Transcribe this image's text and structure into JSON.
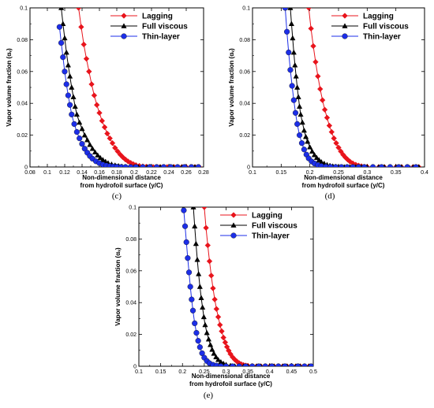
{
  "chart_data": [
    {
      "type": "line",
      "panel_label": "(c)",
      "xlabel": [
        "Non-dimensional distance",
        "from hydrofoil surface (y/C)"
      ],
      "ylabel": "Vapor volume fraction (αᵥ)",
      "xlim": [
        0.08,
        0.28
      ],
      "ylim": [
        0,
        0.1
      ],
      "xticks": [
        "0.08",
        "0.1",
        "0.12",
        "0.14",
        "0.16",
        "0.18",
        "0.2",
        "0.22",
        "0.24",
        "0.26",
        "0.28"
      ],
      "xtick_values": [
        0.08,
        0.1,
        0.12,
        0.14,
        0.16,
        0.18,
        0.2,
        0.22,
        0.24,
        0.26,
        0.28
      ],
      "yticks": [
        "0",
        "0.02",
        "0.04",
        "0.06",
        "0.08",
        "0.1"
      ],
      "ytick_values": [
        0,
        0.02,
        0.04,
        0.06,
        0.08,
        0.1
      ],
      "legend_position": "top-right",
      "series": [
        {
          "name": "Lagging",
          "color": "#e8141c",
          "marker": "diamond",
          "x": [
            0.136,
            0.139,
            0.142,
            0.145,
            0.148,
            0.151,
            0.154,
            0.157,
            0.16,
            0.163,
            0.166,
            0.169,
            0.172,
            0.175,
            0.178,
            0.181,
            0.184,
            0.187,
            0.19,
            0.193,
            0.196,
            0.199,
            0.202,
            0.206,
            0.21,
            0.214,
            0.218,
            0.222,
            0.226,
            0.23,
            0.234,
            0.238,
            0.242,
            0.246,
            0.25,
            0.255,
            0.26,
            0.265,
            0.27,
            0.275
          ],
          "y": [
            0.1,
            0.088,
            0.077,
            0.068,
            0.06,
            0.052,
            0.045,
            0.039,
            0.034,
            0.029,
            0.025,
            0.021,
            0.018,
            0.015,
            0.012,
            0.0098,
            0.0078,
            0.0061,
            0.0047,
            0.0035,
            0.0026,
            0.0018,
            0.0012,
            0.0007,
            0.0004,
            0.0002,
            0.0001,
            0,
            0,
            0,
            0,
            0,
            0,
            0,
            0,
            0,
            0,
            0,
            0,
            0
          ]
        },
        {
          "name": "Full viscous",
          "color": "#000000",
          "marker": "triangle",
          "x": [
            0.116,
            0.118,
            0.12,
            0.122,
            0.124,
            0.126,
            0.128,
            0.13,
            0.132,
            0.134,
            0.137,
            0.14,
            0.143,
            0.146,
            0.149,
            0.152,
            0.155,
            0.158,
            0.161,
            0.164,
            0.167,
            0.17,
            0.174,
            0.178,
            0.182,
            0.186,
            0.19,
            0.195,
            0.2,
            0.205,
            0.21,
            0.215,
            0.22,
            0.225,
            0.23,
            0.235,
            0.24,
            0.245,
            0.25,
            0.255,
            0.26,
            0.265,
            0.27,
            0.275
          ],
          "y": [
            0.1,
            0.09,
            0.081,
            0.072,
            0.064,
            0.057,
            0.05,
            0.044,
            0.038,
            0.033,
            0.028,
            0.024,
            0.02,
            0.017,
            0.014,
            0.0115,
            0.0093,
            0.0074,
            0.0058,
            0.0045,
            0.0034,
            0.0025,
            0.0017,
            0.0011,
            0.0007,
            0.0004,
            0.0002,
            0.0001,
            0,
            0,
            0,
            0,
            0,
            0,
            0,
            0,
            0,
            0,
            0,
            0,
            0,
            0,
            0,
            0
          ]
        },
        {
          "name": "Thin-layer",
          "color": "#1c2ee8",
          "marker": "circle",
          "x": [
            0.114,
            0.116,
            0.118,
            0.12,
            0.122,
            0.124,
            0.126,
            0.128,
            0.131,
            0.134,
            0.137,
            0.14,
            0.143,
            0.146,
            0.149,
            0.152,
            0.156,
            0.16,
            0.164,
            0.168,
            0.172,
            0.176,
            0.18,
            0.185,
            0.19,
            0.196,
            0.202,
            0.21,
            0.218,
            0.226,
            0.234,
            0.242,
            0.25,
            0.258,
            0.266,
            0.274
          ],
          "y": [
            0.088,
            0.078,
            0.069,
            0.06,
            0.052,
            0.045,
            0.039,
            0.033,
            0.027,
            0.022,
            0.018,
            0.0145,
            0.0115,
            0.009,
            0.0069,
            0.0052,
            0.0036,
            0.0024,
            0.0015,
            0.0009,
            0.0005,
            0.0003,
            0.0001,
            0,
            0,
            0,
            0,
            0,
            0,
            0,
            0,
            0,
            0,
            0,
            0,
            0
          ]
        }
      ]
    },
    {
      "type": "line",
      "panel_label": "(d)",
      "xlabel": [
        "Non-dimensional distance",
        "from hydrofoil surface (y/C)"
      ],
      "ylabel": "Vapor volume fraction (αᵥ)",
      "xlim": [
        0.1,
        0.4
      ],
      "ylim": [
        0,
        0.1
      ],
      "xticks": [
        "0.1",
        "0.15",
        "0.2",
        "0.25",
        "0.3",
        "0.35",
        "0.4"
      ],
      "xtick_values": [
        0.1,
        0.15,
        0.2,
        0.25,
        0.3,
        0.35,
        0.4
      ],
      "yticks": [
        "0",
        "0.02",
        "0.04",
        "0.06",
        "0.08",
        "0.1"
      ],
      "ytick_values": [
        0,
        0.02,
        0.04,
        0.06,
        0.08,
        0.1
      ],
      "legend_position": "top-right",
      "series": [
        {
          "name": "Lagging",
          "color": "#e8141c",
          "marker": "diamond",
          "x": [
            0.198,
            0.202,
            0.206,
            0.21,
            0.214,
            0.218,
            0.222,
            0.226,
            0.23,
            0.234,
            0.238,
            0.242,
            0.246,
            0.25,
            0.254,
            0.258,
            0.262,
            0.266,
            0.27,
            0.275,
            0.28,
            0.285,
            0.29,
            0.295,
            0.3,
            0.31,
            0.32,
            0.33,
            0.34,
            0.35,
            0.36,
            0.37,
            0.38,
            0.39
          ],
          "y": [
            0.1,
            0.087,
            0.076,
            0.066,
            0.057,
            0.049,
            0.042,
            0.036,
            0.031,
            0.026,
            0.022,
            0.018,
            0.015,
            0.0122,
            0.0098,
            0.0077,
            0.006,
            0.0046,
            0.0034,
            0.0023,
            0.0015,
            0.0009,
            0.0005,
            0.0002,
            0.0001,
            0,
            0,
            0,
            0,
            0,
            0,
            0,
            0,
            0
          ]
        },
        {
          "name": "Full viscous",
          "color": "#000000",
          "marker": "triangle",
          "x": [
            0.166,
            0.168,
            0.17,
            0.172,
            0.174,
            0.176,
            0.178,
            0.18,
            0.182,
            0.184,
            0.187,
            0.19,
            0.193,
            0.196,
            0.2,
            0.204,
            0.208,
            0.212,
            0.216,
            0.22,
            0.225,
            0.23,
            0.235,
            0.24,
            0.245,
            0.25,
            0.26,
            0.27,
            0.28,
            0.29,
            0.3,
            0.31,
            0.32,
            0.33,
            0.34,
            0.35,
            0.36,
            0.37,
            0.38,
            0.39
          ],
          "y": [
            0.1,
            0.09,
            0.081,
            0.072,
            0.064,
            0.057,
            0.05,
            0.044,
            0.038,
            0.033,
            0.028,
            0.023,
            0.019,
            0.016,
            0.0125,
            0.0098,
            0.0076,
            0.0058,
            0.0044,
            0.0032,
            0.0022,
            0.0014,
            0.0009,
            0.0005,
            0.0003,
            0.0001,
            0,
            0,
            0,
            0,
            0,
            0,
            0,
            0,
            0,
            0,
            0,
            0,
            0,
            0
          ]
        },
        {
          "name": "Thin-layer",
          "color": "#1c2ee8",
          "marker": "circle",
          "x": [
            0.157,
            0.16,
            0.163,
            0.166,
            0.169,
            0.172,
            0.175,
            0.178,
            0.182,
            0.186,
            0.19,
            0.194,
            0.198,
            0.203,
            0.208,
            0.214,
            0.22,
            0.228,
            0.236,
            0.245,
            0.255,
            0.265,
            0.275,
            0.285,
            0.295,
            0.31,
            0.325,
            0.34,
            0.355,
            0.37,
            0.385
          ],
          "y": [
            0.1,
            0.085,
            0.072,
            0.061,
            0.051,
            0.042,
            0.034,
            0.027,
            0.02,
            0.015,
            0.011,
            0.0078,
            0.0054,
            0.0035,
            0.0022,
            0.0012,
            0.0006,
            0.0002,
            0.0001,
            0,
            0,
            0,
            0,
            0,
            0,
            0,
            0,
            0,
            0,
            0,
            0
          ]
        }
      ]
    },
    {
      "type": "line",
      "panel_label": "(e)",
      "xlabel": [
        "Non-dimensional distance",
        "from hydrofoil surface (y/C)"
      ],
      "ylabel": "Vapor volume fraction (αᵥ)",
      "xlim": [
        0.1,
        0.5
      ],
      "ylim": [
        0,
        0.1
      ],
      "xticks": [
        "0.1",
        "0.15",
        "0.2",
        "0.25",
        "0.3",
        "0.35",
        "0.4",
        "0.45",
        "0.5"
      ],
      "xtick_values": [
        0.1,
        0.15,
        0.2,
        0.25,
        0.3,
        0.35,
        0.4,
        0.45,
        0.5
      ],
      "yticks": [
        "0",
        "0.02",
        "0.04",
        "0.06",
        "0.08",
        "0.1"
      ],
      "ytick_values": [
        0,
        0.02,
        0.04,
        0.06,
        0.08,
        0.1
      ],
      "legend_position": "top-right",
      "series": [
        {
          "name": "Lagging",
          "color": "#e8141c",
          "marker": "diamond",
          "x": [
            0.25,
            0.254,
            0.258,
            0.262,
            0.266,
            0.27,
            0.274,
            0.278,
            0.282,
            0.286,
            0.29,
            0.294,
            0.298,
            0.302,
            0.306,
            0.31,
            0.315,
            0.32,
            0.325,
            0.33,
            0.335,
            0.34,
            0.345,
            0.35,
            0.36,
            0.37,
            0.38,
            0.39,
            0.4,
            0.41,
            0.42,
            0.43,
            0.44,
            0.45,
            0.46,
            0.47,
            0.48,
            0.49
          ],
          "y": [
            0.1,
            0.087,
            0.076,
            0.066,
            0.057,
            0.049,
            0.042,
            0.036,
            0.031,
            0.026,
            0.022,
            0.018,
            0.015,
            0.0122,
            0.0098,
            0.0077,
            0.0057,
            0.0042,
            0.003,
            0.002,
            0.0013,
            0.0008,
            0.0005,
            0.0003,
            0.0001,
            0,
            0,
            0,
            0,
            0,
            0,
            0,
            0,
            0,
            0,
            0,
            0,
            0
          ]
        },
        {
          "name": "Full viscous",
          "color": "#000000",
          "marker": "triangle",
          "x": [
            0.225,
            0.228,
            0.231,
            0.234,
            0.237,
            0.24,
            0.243,
            0.246,
            0.249,
            0.252,
            0.256,
            0.26,
            0.264,
            0.268,
            0.272,
            0.277,
            0.282,
            0.288,
            0.294,
            0.3,
            0.31,
            0.32,
            0.33,
            0.34,
            0.35,
            0.36,
            0.37,
            0.38,
            0.39,
            0.4,
            0.41,
            0.42,
            0.43,
            0.44,
            0.45,
            0.46,
            0.47,
            0.48,
            0.49
          ],
          "y": [
            0.1,
            0.088,
            0.077,
            0.067,
            0.058,
            0.05,
            0.043,
            0.037,
            0.031,
            0.026,
            0.021,
            0.017,
            0.0135,
            0.0105,
            0.008,
            0.0058,
            0.0041,
            0.0027,
            0.0017,
            0.001,
            0.0004,
            0.0001,
            0,
            0,
            0,
            0,
            0,
            0,
            0,
            0,
            0,
            0,
            0,
            0,
            0,
            0,
            0,
            0,
            0
          ]
        },
        {
          "name": "Thin-layer",
          "color": "#1c2ee8",
          "marker": "circle",
          "x": [
            0.203,
            0.206,
            0.209,
            0.212,
            0.215,
            0.218,
            0.221,
            0.224,
            0.228,
            0.232,
            0.236,
            0.24,
            0.245,
            0.25,
            0.256,
            0.262,
            0.27,
            0.278,
            0.288,
            0.3,
            0.315,
            0.33,
            0.345,
            0.36,
            0.375,
            0.39,
            0.405,
            0.42,
            0.435,
            0.45,
            0.465,
            0.48,
            0.495
          ],
          "y": [
            0.098,
            0.088,
            0.078,
            0.068,
            0.059,
            0.05,
            0.042,
            0.035,
            0.027,
            0.021,
            0.016,
            0.012,
            0.0082,
            0.0054,
            0.0033,
            0.0019,
            0.0009,
            0.0004,
            0.0001,
            0,
            0,
            0,
            0,
            0,
            0,
            0,
            0,
            0,
            0,
            0,
            0,
            0,
            0
          ]
        }
      ]
    }
  ]
}
